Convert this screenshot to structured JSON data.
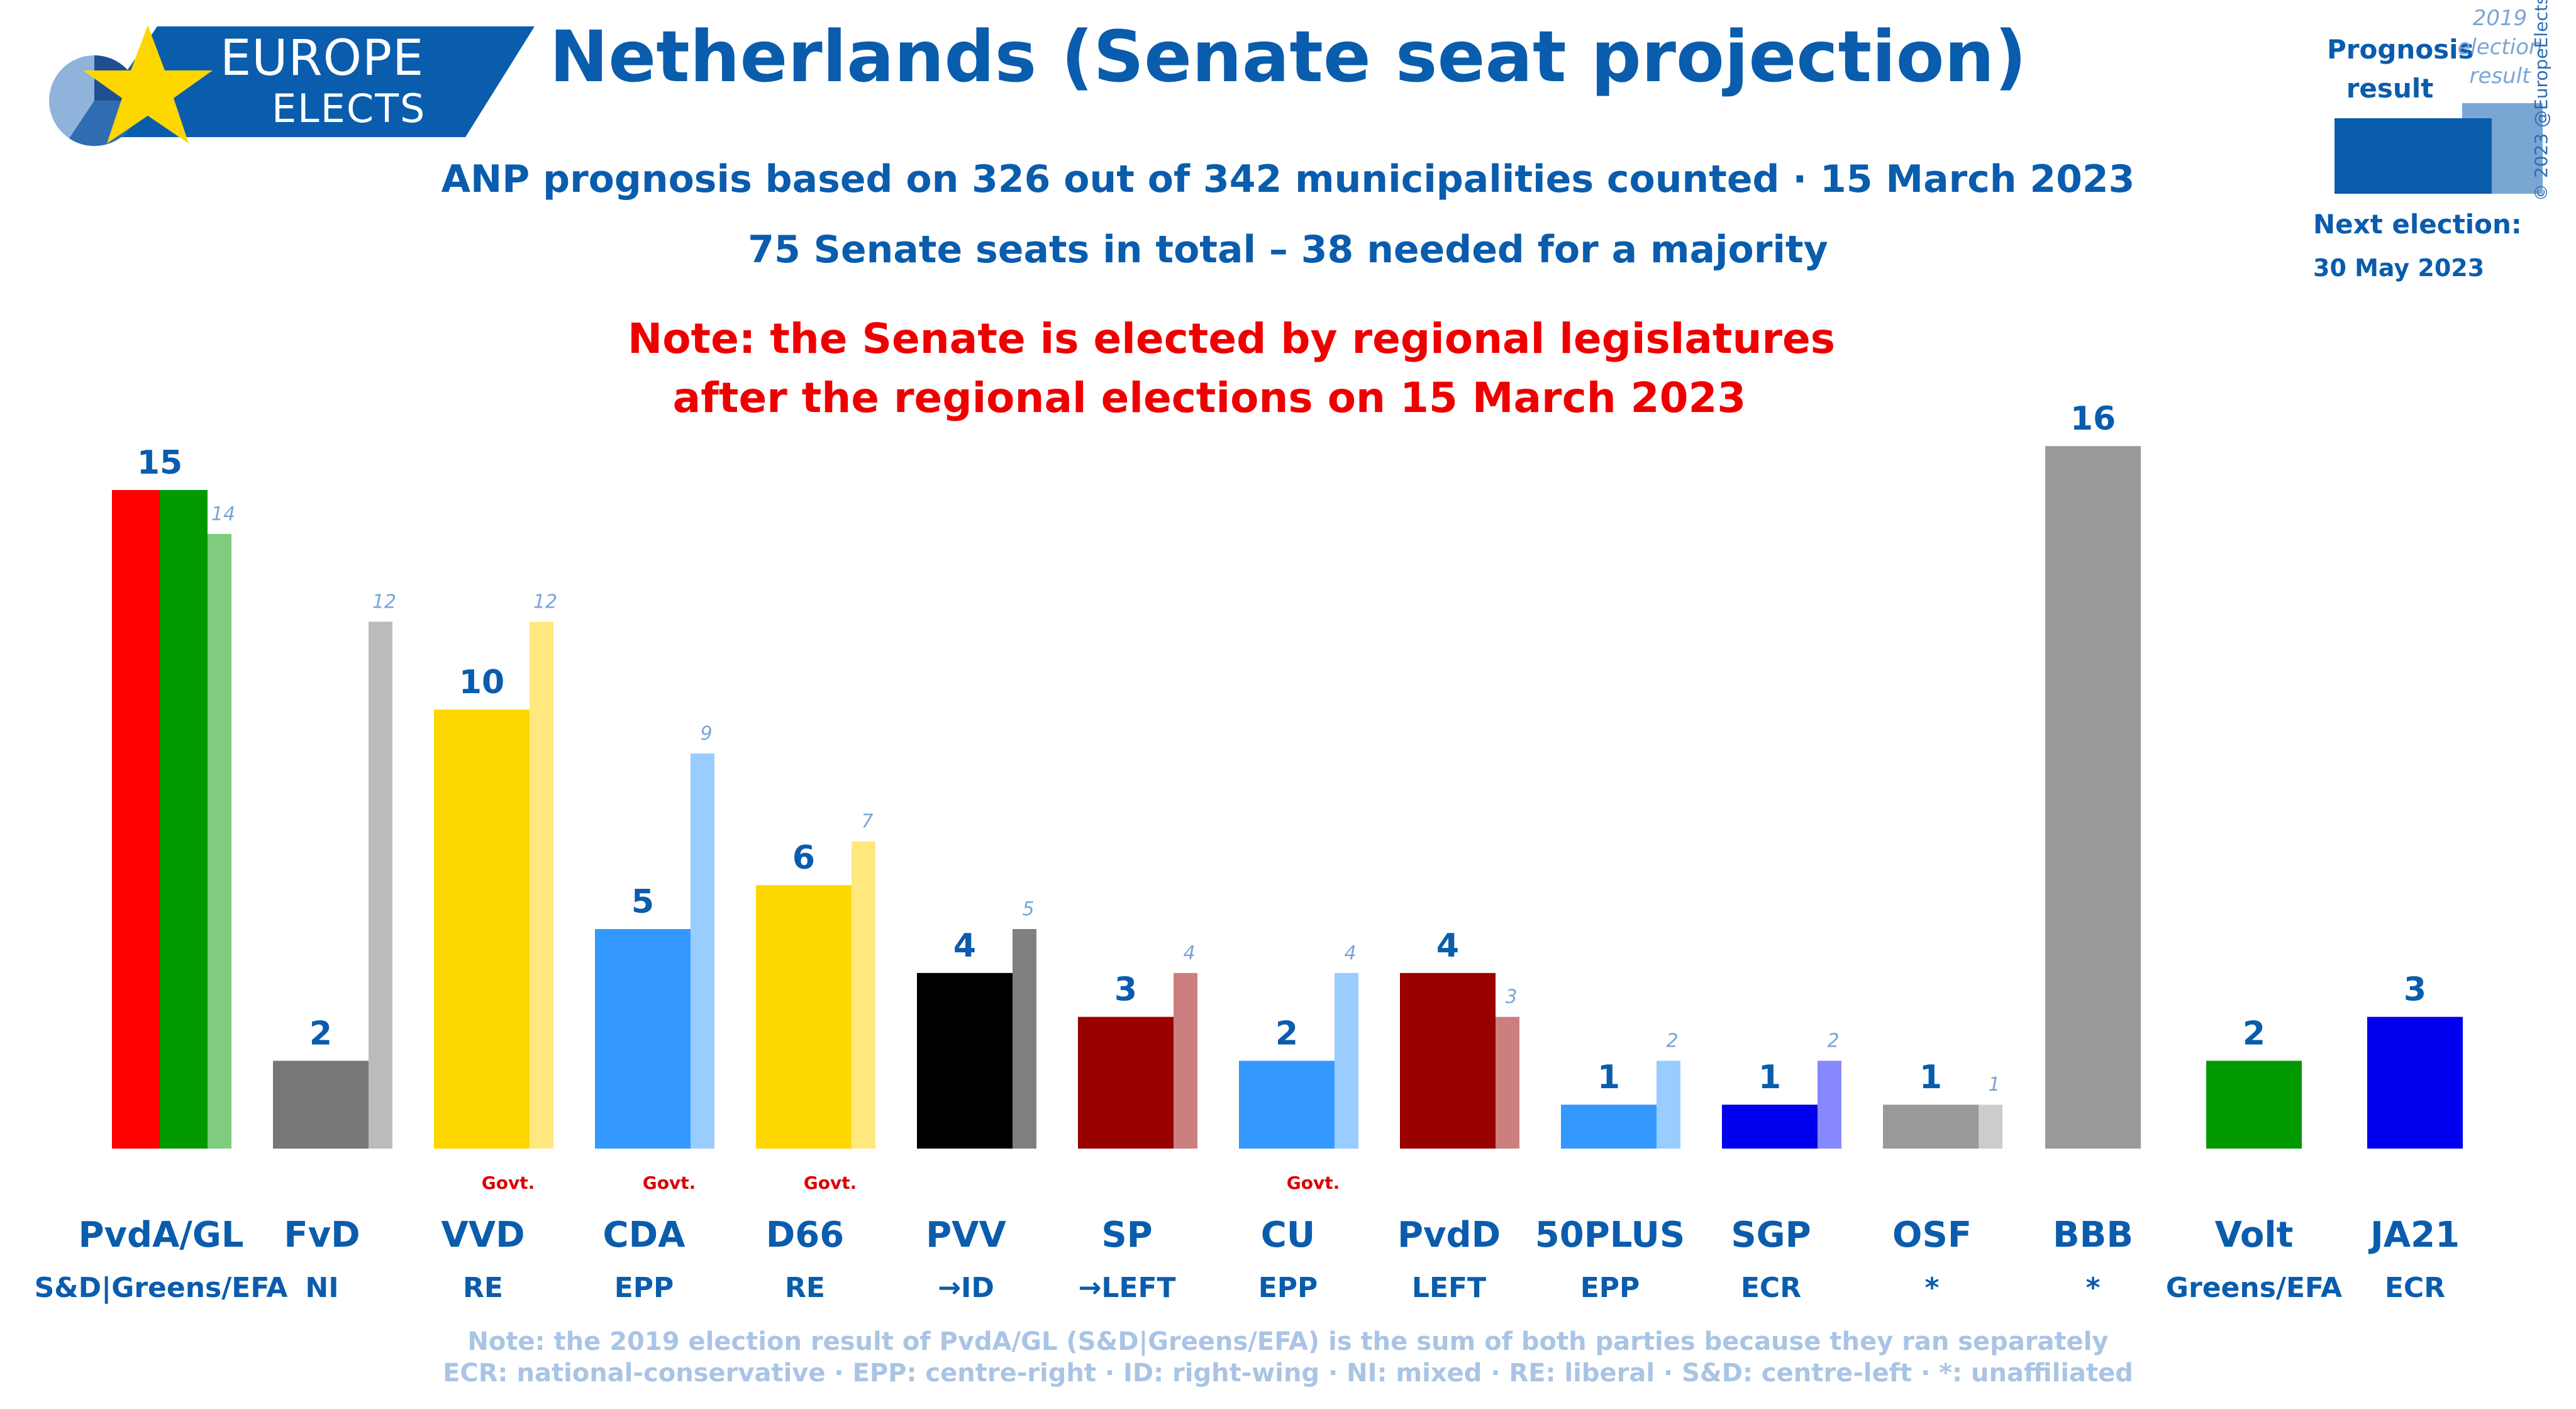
{
  "logo": {
    "line1": "EUROPE",
    "line2": "ELECTS"
  },
  "header": {
    "title": "Netherlands (Senate seat projection)",
    "subtitle1": "ANP prognosis based on 326 out of 342 municipalities counted · 15 March 2023",
    "subtitle2": "75 Senate seats in total – 38 needed for a majority",
    "note1": "Note: the Senate is elected by regional legislatures",
    "note2": "after the regional elections on 15 March 2023"
  },
  "legend": {
    "prognosis_line1": "Prognosis",
    "prognosis_line2": "result",
    "prev_line1": "2019",
    "prev_line2": "election",
    "prev_line3": "result",
    "next_label": "Next election:",
    "next_date": "30 May 2023"
  },
  "copyright": "© 2023 @EuropeElects",
  "footer": {
    "line1": "Note: the 2019 election result of PvdA/GL (S&D|Greens/EFA) is the sum of both parties because they ran separately",
    "line2": "ECR: national-conservative · EPP: centre-right · ID: right-wing · NI: mixed · RE: liberal · S&D: centre-left · *: unaffiliated"
  },
  "chart_data": {
    "type": "bar",
    "govt_label": "Govt.",
    "ylim": [
      0,
      16
    ],
    "categories": [
      "PvdA/GL",
      "FvD",
      "VVD",
      "CDA",
      "D66",
      "PVV",
      "SP",
      "CU",
      "PvdD",
      "50PLUS",
      "SGP",
      "OSF",
      "BBB",
      "Volt",
      "JA21"
    ],
    "groups": [
      "S&D|Greens/EFA",
      "NI",
      "RE",
      "EPP",
      "RE",
      "→ID",
      "→LEFT",
      "EPP",
      "LEFT",
      "EPP",
      "ECR",
      "*",
      "*",
      "Greens/EFA",
      "ECR"
    ],
    "government": [
      false,
      false,
      true,
      true,
      true,
      false,
      false,
      true,
      false,
      false,
      false,
      false,
      false,
      false,
      false
    ],
    "series": [
      {
        "values": [
          15,
          2,
          10,
          5,
          6,
          4,
          3,
          2,
          4,
          1,
          1,
          1,
          16,
          2,
          3
        ]
      },
      {
        "values": [
          14,
          12,
          12,
          9,
          7,
          5,
          4,
          4,
          3,
          2,
          2,
          1,
          null,
          null,
          null
        ]
      }
    ],
    "colors": {
      "prognosis": [
        "#ff0000",
        "#777777",
        "#ffd700",
        "#3399ff",
        "#ffd700",
        "#000000",
        "#990000",
        "#3399ff",
        "#990000",
        "#3399ff",
        "#0000ee",
        "#999999",
        "#999999",
        "#009900",
        "#0000ee"
      ],
      "prognosis_split": "#009900",
      "previous": [
        "#7fcc7f",
        "#bbbbbb",
        "#ffe97f",
        "#99ccff",
        "#ffe97f",
        "#7f7f7f",
        "#cc7f7f",
        "#99ccff",
        "#cc7f7f",
        "#99ccff",
        "#8888ff",
        "#cccccc",
        null,
        null,
        null
      ]
    }
  }
}
